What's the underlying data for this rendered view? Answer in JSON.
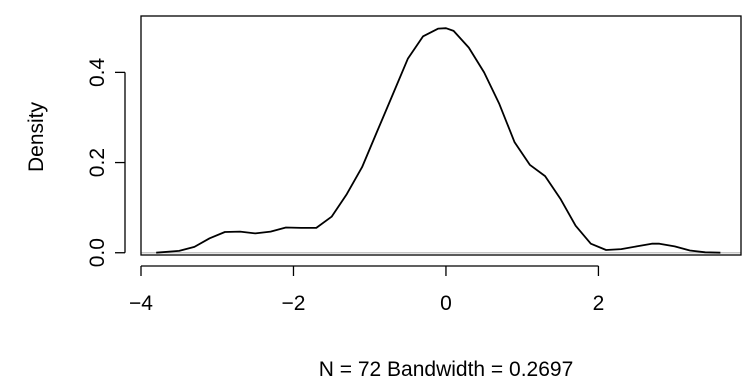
{
  "chart_data": {
    "type": "line",
    "title": "",
    "xlabel": "N = 72   Bandwidth = 0.2697",
    "ylabel": "Density",
    "xlim": [
      -4.0,
      3.87
    ],
    "ylim": [
      -0.005,
      0.525
    ],
    "xticks": [
      -4,
      -2,
      0,
      2
    ],
    "xtick_labels": [
      "−4",
      "−2",
      "0",
      "2"
    ],
    "yticks": [
      0.0,
      0.2,
      0.4
    ],
    "ytick_labels": [
      "0.0",
      "0.2",
      "0.4"
    ],
    "zero_line": {
      "y": 0,
      "color": "#bebebe"
    },
    "grid": false,
    "series": [
      {
        "color": "#000000",
        "x": [
          -3.8,
          -3.5,
          -3.3,
          -3.1,
          -2.9,
          -2.7,
          -2.5,
          -2.3,
          -2.1,
          -1.9,
          -1.7,
          -1.5,
          -1.3,
          -1.1,
          -0.9,
          -0.7,
          -0.5,
          -0.3,
          -0.1,
          0.0,
          0.1,
          0.3,
          0.5,
          0.7,
          0.9,
          1.1,
          1.3,
          1.5,
          1.7,
          1.9,
          2.1,
          2.3,
          2.5,
          2.7,
          2.8,
          3.0,
          3.2,
          3.4,
          3.6
        ],
        "y": [
          0.0,
          0.004,
          0.013,
          0.032,
          0.046,
          0.047,
          0.043,
          0.047,
          0.056,
          0.055,
          0.055,
          0.08,
          0.13,
          0.19,
          0.27,
          0.35,
          0.43,
          0.48,
          0.497,
          0.498,
          0.492,
          0.455,
          0.4,
          0.33,
          0.245,
          0.195,
          0.17,
          0.12,
          0.06,
          0.02,
          0.006,
          0.008,
          0.014,
          0.02,
          0.02,
          0.014,
          0.005,
          0.001,
          0.0
        ]
      }
    ]
  }
}
